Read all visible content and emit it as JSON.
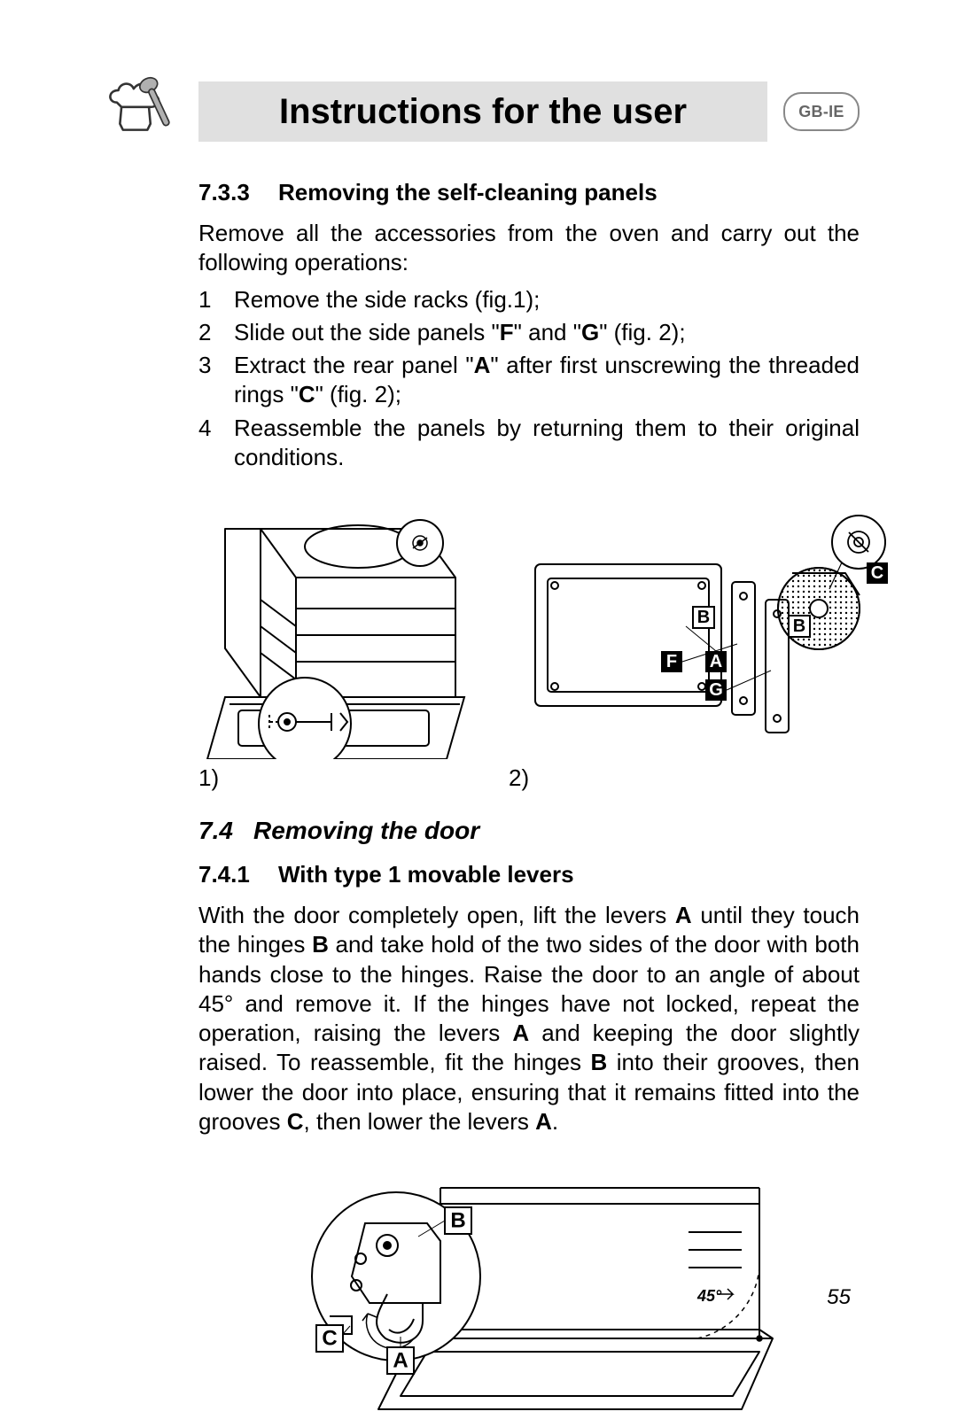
{
  "header": {
    "title": "Instructions for the user",
    "region_badge": "GB-IE"
  },
  "section_733": {
    "number": "7.3.3",
    "title": "Removing the self-cleaning panels",
    "intro": "Remove all the accessories from the oven and carry out the following operations:",
    "steps": [
      {
        "n": "1",
        "text": "Remove the side racks (fig.1);"
      },
      {
        "n": "2",
        "text_html": "Slide out the side panels \"<b>F</b>\" and \"<b>G</b>\" (fig. 2);"
      },
      {
        "n": "3",
        "text_html": "Extract the rear panel \"<b>A</b>\" after first unscrewing the threaded rings \"<b>C</b>\" (fig. 2);"
      },
      {
        "n": "4",
        "text": "Reassemble the panels by returning them to their original conditions."
      }
    ],
    "figure_labels": [
      "1)",
      "2)"
    ],
    "fig2_labels": {
      "C": "C",
      "B1": "B",
      "B2": "B",
      "F": "F",
      "A": "A",
      "G": "G"
    }
  },
  "section_74": {
    "number": "7.4",
    "title": "Removing the door"
  },
  "section_741": {
    "number": "7.4.1",
    "title": "With type 1 movable levers",
    "paragraph_html": "With the door completely open, lift the levers <b>A</b> until they touch the hinges <b>B</b> and take hold of the two sides of the door with both hands close to the hinges. Raise the door to an angle of about 45° and remove it. If the hinges have not locked, repeat the operation, raising the levers <b>A</b> and keeping the door slightly raised. To reassemble, fit the hinges <b>B</b> into their grooves, then lower the door into place, ensuring that it remains fitted into the grooves <b>C</b>, then lower the levers <b>A</b>.",
    "fig3_labels": {
      "B": "B",
      "C": "C",
      "A": "A",
      "angle": "45°"
    }
  },
  "page_number": "55",
  "style": {
    "title_bar_bg": "#e0e0e0",
    "body_fontsize": 26,
    "heading_fontsize": 26,
    "section_heading_fontsize": 28,
    "title_fontsize": 40,
    "badge_text_color": "#666666",
    "badge_border": "#888888",
    "line_stroke": "#000000",
    "line_gray": "#808080",
    "label_box_bg": "#000000",
    "label_box_fg": "#ffffff",
    "page_bg": "#ffffff"
  }
}
